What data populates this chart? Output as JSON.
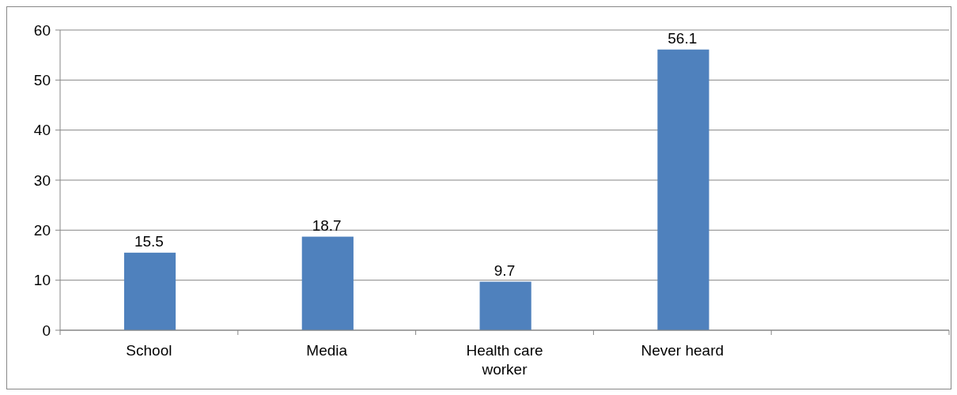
{
  "chart_data": {
    "type": "bar",
    "categories": [
      "School",
      "Media",
      "Health care worker",
      "Never heard",
      null
    ],
    "values": [
      15.5,
      18.7,
      9.7,
      56.1,
      null
    ],
    "color": "#4f81bd",
    "ylim": [
      0,
      60
    ],
    "yticks": [
      0,
      10,
      20,
      30,
      40,
      50,
      60
    ],
    "grid": "y",
    "data_labels": true
  }
}
